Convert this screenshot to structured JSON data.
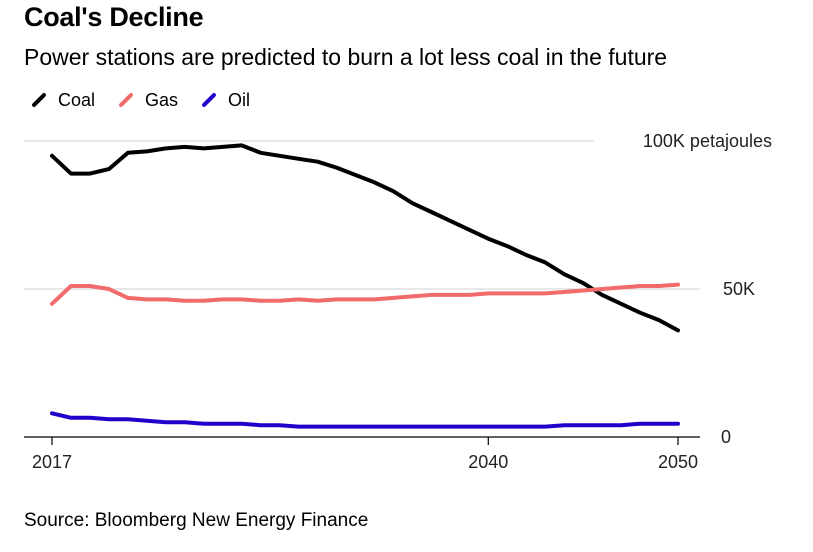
{
  "title": "Coal's Decline",
  "subtitle": "Power stations are predicted to burn a lot less coal in the future",
  "source": "Source: Bloomberg New Energy Finance",
  "colors": {
    "coal": "#000000",
    "gas": "#f26b6b",
    "oil": "#2200cc",
    "grid": "#d9d9d9"
  },
  "chart_data": {
    "type": "line",
    "x": [
      2017,
      2018,
      2019,
      2020,
      2021,
      2022,
      2023,
      2024,
      2025,
      2026,
      2027,
      2028,
      2029,
      2030,
      2031,
      2032,
      2033,
      2034,
      2035,
      2036,
      2037,
      2038,
      2039,
      2040,
      2041,
      2042,
      2043,
      2044,
      2045,
      2046,
      2047,
      2048,
      2049,
      2050
    ],
    "series": [
      {
        "name": "Coal",
        "color": "#000000",
        "values": [
          95,
          89,
          89,
          90.5,
          96,
          96.5,
          97.5,
          98,
          97.5,
          98,
          98.5,
          96,
          95,
          94,
          93,
          91,
          88.5,
          86,
          83,
          79,
          76,
          73,
          70,
          67,
          64.5,
          61.5,
          59,
          55,
          52,
          48,
          45,
          42,
          39.5,
          36
        ]
      },
      {
        "name": "Gas",
        "color": "#f26b6b",
        "values": [
          45,
          51,
          51,
          50,
          47,
          46.5,
          46.5,
          46,
          46,
          46.5,
          46.5,
          46,
          46,
          46.5,
          46,
          46.5,
          46.5,
          46.5,
          47,
          47.5,
          48,
          48,
          48,
          48.5,
          48.5,
          48.5,
          48.5,
          49,
          49.5,
          50,
          50.5,
          51,
          51,
          51.5
        ]
      },
      {
        "name": "Oil",
        "color": "#2200cc",
        "values": [
          8,
          6.5,
          6.5,
          6,
          6,
          5.5,
          5,
          5,
          4.5,
          4.5,
          4.5,
          4,
          4,
          3.5,
          3.5,
          3.5,
          3.5,
          3.5,
          3.5,
          3.5,
          3.5,
          3.5,
          3.5,
          3.5,
          3.5,
          3.5,
          3.5,
          4,
          4,
          4,
          4,
          4.5,
          4.5,
          4.5
        ]
      }
    ],
    "ylim": [
      0,
      100
    ],
    "yticks": [
      {
        "value": 0,
        "label": "0"
      },
      {
        "value": 50,
        "label": "50K"
      },
      {
        "value": 100,
        "label": "100K petajoules"
      }
    ],
    "xticks": [
      {
        "value": 2017,
        "label": "2017"
      },
      {
        "value": 2040,
        "label": "2040"
      },
      {
        "value": 2050,
        "label": "2050"
      }
    ],
    "legend": [
      "Coal",
      "Gas",
      "Oil"
    ],
    "legend_position": "top-left",
    "grid": true
  }
}
